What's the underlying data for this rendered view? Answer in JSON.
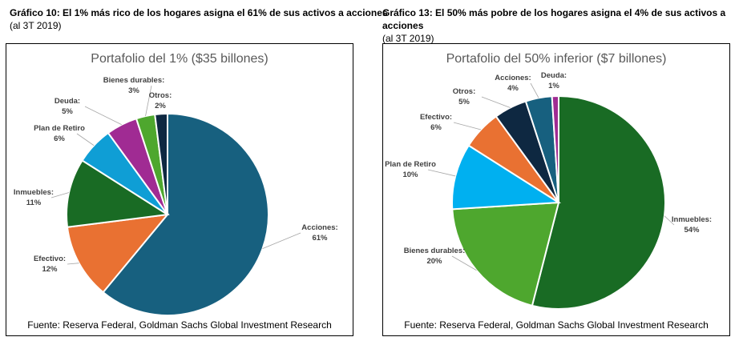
{
  "charts_header": [
    {
      "title": "Gráfico 10: El 1% más rico de los hogares asigna el 61% de sus activos a acciones",
      "subtitle": "(al 3T 2019)"
    },
    {
      "title": "Gráfico 13: El 50% más pobre de los hogares asigna el 4% de sus activos a acciones",
      "subtitle": "(al 3T 2019)"
    }
  ],
  "chart_data": [
    {
      "type": "pie",
      "title": "Portafolio del 1% ($35 billones)",
      "source": "Fuente: Reserva Federal, Goldman Sachs Global Investment Research",
      "slices": [
        {
          "label": "Acciones:",
          "value": 61,
          "display": "61%",
          "color": "#17607f"
        },
        {
          "label": "Efectivo:",
          "value": 12,
          "display": "12%",
          "color": "#e97132"
        },
        {
          "label": "Inmuebles:",
          "value": 11,
          "display": "11%",
          "color": "#196b24"
        },
        {
          "label": "Plan de Retiro",
          "value": 6,
          "display": "6%",
          "color": "#0f9ed5"
        },
        {
          "label": "Deuda:",
          "value": 5,
          "display": "5%",
          "color": "#a02b93"
        },
        {
          "label": "Bienes durables:",
          "value": 3,
          "display": "3%",
          "color": "#4ea72e"
        },
        {
          "label": "Otros:",
          "value": 2,
          "display": "2%",
          "color": "#0e2841"
        }
      ]
    },
    {
      "type": "pie",
      "title": "Portafolio del 50% inferior ($7 billones)",
      "source": "Fuente: Reserva Federal, Goldman Sachs Global Investment Research",
      "slices": [
        {
          "label": "Inmuebles:",
          "value": 54,
          "display": "54%",
          "color": "#196b24"
        },
        {
          "label": "Bienes durables:",
          "value": 20,
          "display": "20%",
          "color": "#4ea72e"
        },
        {
          "label": "Plan de Retiro",
          "value": 10,
          "display": "10%",
          "color": "#00b0f0"
        },
        {
          "label": "Efectivo:",
          "value": 6,
          "display": "6%",
          "color": "#e97132"
        },
        {
          "label": "Otros:",
          "value": 5,
          "display": "5%",
          "color": "#0e2841"
        },
        {
          "label": "Acciones:",
          "value": 4,
          "display": "4%",
          "color": "#17607f"
        },
        {
          "label": "Deuda:",
          "value": 1,
          "display": "1%",
          "color": "#a02b93"
        }
      ]
    }
  ]
}
